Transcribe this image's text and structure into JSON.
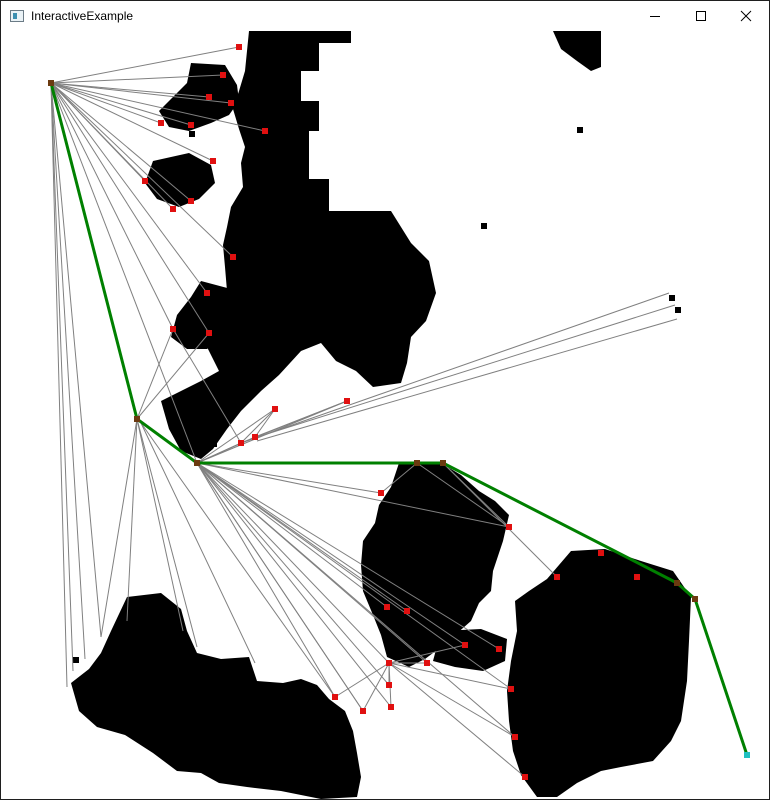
{
  "window": {
    "title": "InteractiveExample",
    "icon": "app-window-icon",
    "controls": [
      {
        "name": "minimize-button",
        "icon": "minimize-icon"
      },
      {
        "name": "maximize-button",
        "icon": "maximize-icon"
      },
      {
        "name": "close-button",
        "icon": "close-icon"
      }
    ]
  },
  "colors": {
    "obstacle": "#000000",
    "background": "#ffffff",
    "visibility_edge": "#808080",
    "path": "#008000",
    "graph_node": "#e01010",
    "path_node": "#6b3a10",
    "goal_node": "#20c0c0"
  }
}
